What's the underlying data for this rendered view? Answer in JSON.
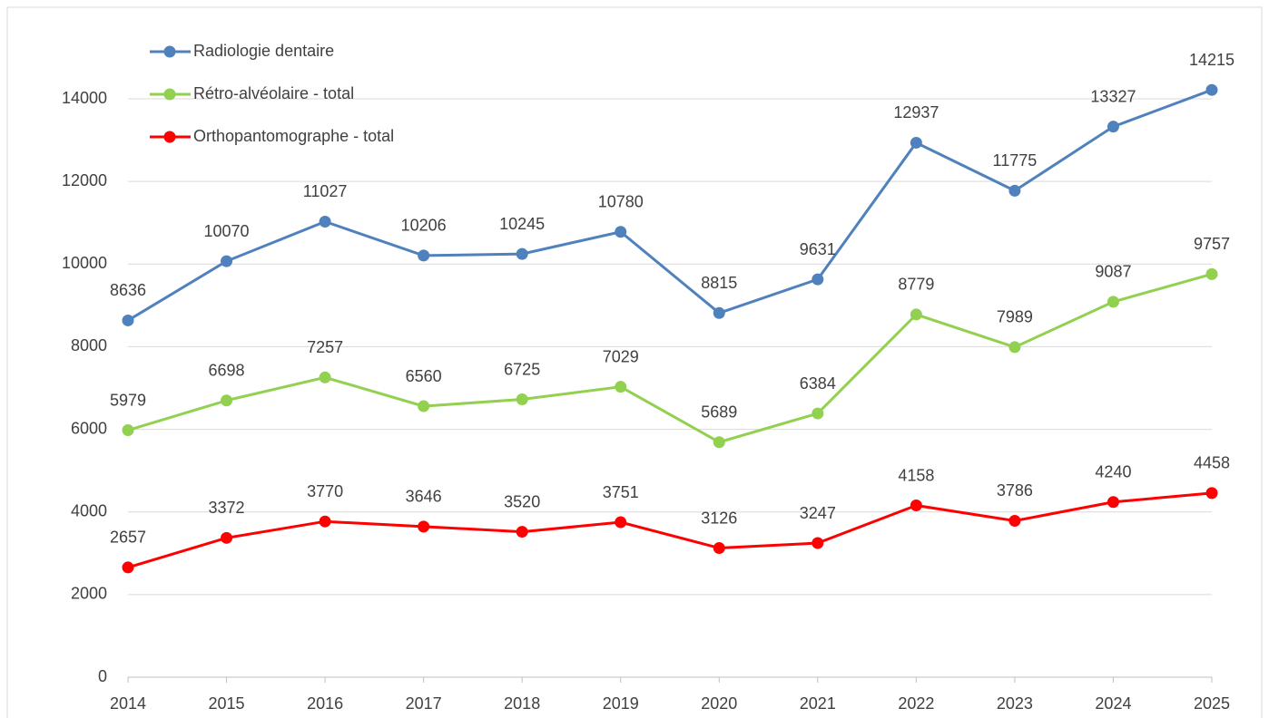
{
  "chart_data": {
    "type": "line",
    "categories": [
      "2014",
      "2015",
      "2016",
      "2017",
      "2018",
      "2019",
      "2020",
      "2021",
      "2022",
      "2023",
      "2024",
      "2025"
    ],
    "series": [
      {
        "name": "Radiologie dentaire",
        "color": "#4f81bd",
        "values": [
          8636,
          10070,
          11027,
          10206,
          10245,
          10780,
          8815,
          9631,
          12937,
          11775,
          13327,
          14215
        ]
      },
      {
        "name": "Rétro-alvéolaire - total",
        "color": "#92d050",
        "values": [
          5979,
          6698,
          7257,
          6560,
          6725,
          7029,
          5689,
          6384,
          8779,
          7989,
          9087,
          9757
        ]
      },
      {
        "name": "Orthopantomographe - total",
        "color": "#ff0000",
        "values": [
          2657,
          3372,
          3770,
          3646,
          3520,
          3751,
          3126,
          3247,
          4158,
          3786,
          4240,
          4458
        ]
      }
    ],
    "ylim": [
      0,
      14000
    ],
    "yticks": [
      0,
      2000,
      4000,
      6000,
      8000,
      10000,
      12000,
      14000
    ],
    "grid": true,
    "legend": "top-left"
  }
}
